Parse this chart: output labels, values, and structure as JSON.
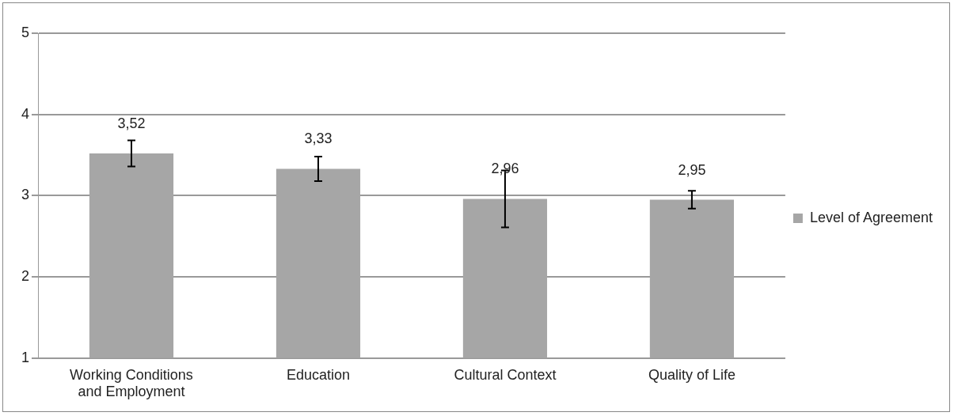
{
  "chart_data": {
    "type": "bar",
    "categories": [
      "Working Conditions and Employment",
      "Education",
      "Cultural Context",
      "Quality of Life"
    ],
    "series": [
      {
        "name": "Level of Agreement",
        "color": "#a6a6a6",
        "values": [
          3.52,
          3.33,
          2.96,
          2.95
        ],
        "errors": [
          0.16,
          0.15,
          0.35,
          0.11
        ],
        "value_labels": [
          "3,52",
          "3,33",
          "2,96",
          "2,95"
        ]
      }
    ],
    "ylim": [
      1,
      5
    ],
    "yticks": [
      1,
      2,
      3,
      4,
      5
    ],
    "grid": "y",
    "legend": "right"
  }
}
